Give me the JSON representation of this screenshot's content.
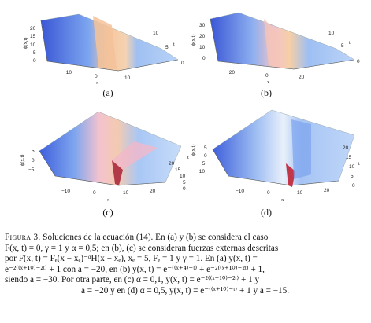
{
  "panels": [
    {
      "label": "(a)",
      "zlabel": "ϕ(x,t)",
      "xlabel": "x",
      "tlabel": "t",
      "zticks": [
        "20",
        "15",
        "10",
        "5",
        "0"
      ],
      "xticks": [
        "−10",
        "0",
        "10"
      ],
      "tticks": [
        "10",
        "5",
        "0"
      ]
    },
    {
      "label": "(b)",
      "zlabel": "ϕ(x,t)",
      "xlabel": "x",
      "tlabel": "t",
      "zticks": [
        "30",
        "20",
        "10",
        "0"
      ],
      "xticks": [
        "−20",
        "0",
        "20"
      ],
      "tticks": [
        "10",
        "5",
        "0"
      ]
    },
    {
      "label": "(c)",
      "zlabel": "ϕ(x,t)",
      "xlabel": "x",
      "tlabel": "t",
      "zticks": [
        "5",
        "0",
        "−5"
      ],
      "xticks": [
        "−10",
        "0",
        "10",
        "20"
      ],
      "tticks": [
        "20",
        "15",
        "10",
        "5",
        "0"
      ]
    },
    {
      "label": "(d)",
      "zlabel": "ϕ(x,t)",
      "xlabel": "x",
      "tlabel": "t",
      "zticks": [
        "5",
        "0",
        "−5",
        "−10"
      ],
      "xticks": [
        "−10",
        "0",
        "10",
        "20"
      ],
      "tticks": [
        "20",
        "15",
        "10",
        "5",
        "0"
      ]
    }
  ],
  "caption": {
    "label": "Figura 3.",
    "line1": "Soluciones de la ecuación (14). En (a) y (b) se considera el caso",
    "line2": "F(x, t) = 0, γ = 1 y α = 0,5; en (b), (c) se consideran fuerzas externas descritas",
    "line3": "por F(x, t) = Fₑ(x − xₑ)⁻ᵅH(x − xₑ), xₑ = 5, Fₑ = 1 y γ = 1. En (a) y(x, t) =",
    "line4": "e⁻²⁽⁽ˣ⁺¹⁰⁾⁻²ᵗ⁾ + 1 con a = −20, en (b) y(x, t) = e⁻⁽⁽ˣ⁺⁴⁾⁻ᵗ⁾ + e⁻²⁽⁽ˣ⁺¹⁰⁾⁻²ᵗ⁾ + 1,",
    "line5": "siendo a = −30. Por otra parte, en (c) α = 0,1, y(x, t) = e⁻²⁽⁽ˣ⁺¹⁰⁾⁻²ᵗ⁾ + 1 y",
    "line6": "a = −20 y en (d) α = 0,5, y(x, t) = e⁻⁽⁽ˣ⁺¹⁰⁾⁻ᵗ⁾ + 1 y a = −15."
  },
  "colors": {
    "blue_low": "#3b5fd8",
    "blue_mid": "#8fb4f0",
    "peach": "#f3c9a2",
    "pink": "#f2b8c9",
    "dark": "#b23a48"
  }
}
